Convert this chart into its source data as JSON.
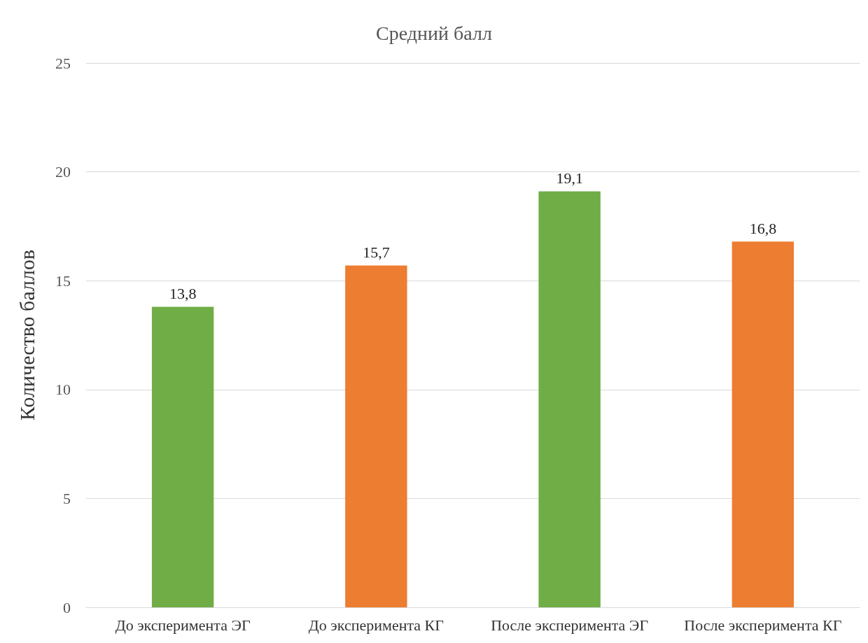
{
  "chart_data": {
    "type": "bar",
    "title": "Средний балл",
    "ylabel": "Количество баллов",
    "categories": [
      "До эксперимента ЭГ",
      "До эксперимента КГ",
      "После эксперимента ЭГ",
      "После эксперимента КГ"
    ],
    "values": [
      13.8,
      15.7,
      19.1,
      16.8
    ],
    "colors": [
      "#70ad47",
      "#ed7d31",
      "#70ad47",
      "#ed7d31"
    ],
    "value_labels": [
      "13,8",
      "15,7",
      "19,1",
      "16,8"
    ],
    "ylim": [
      0,
      25
    ],
    "yticks": [
      0,
      5,
      10,
      15,
      20,
      25
    ],
    "grid": "y"
  }
}
